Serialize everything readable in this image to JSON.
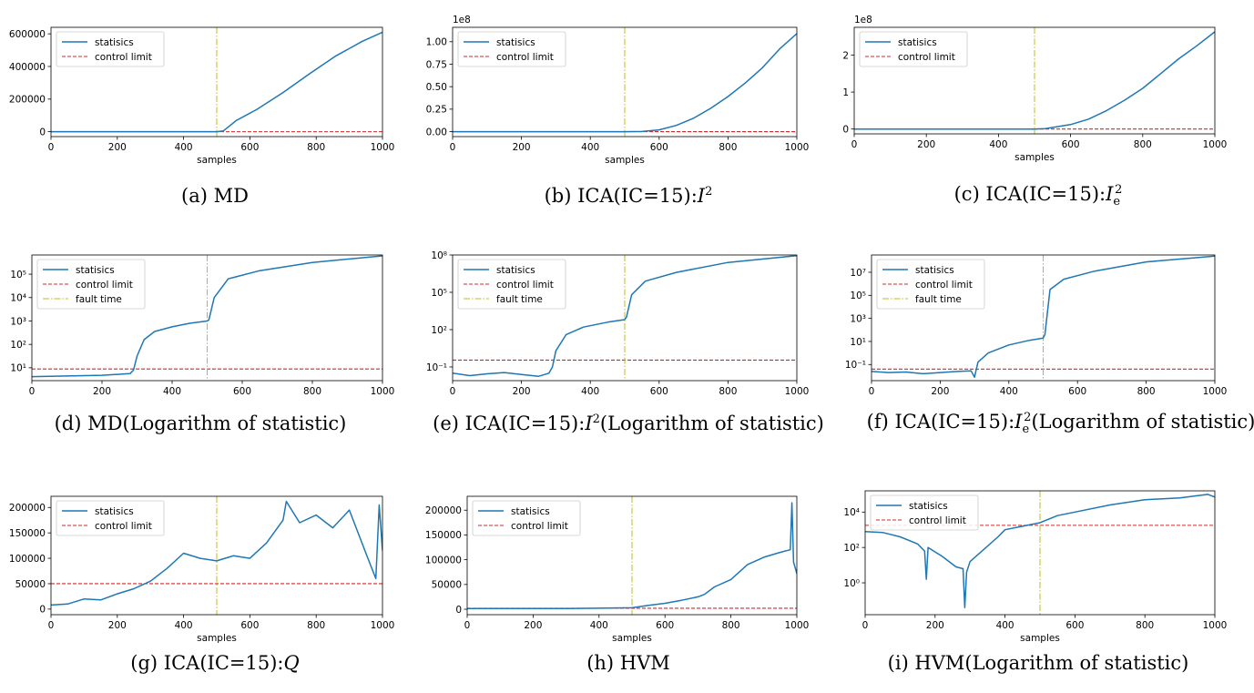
{
  "chart_data": [
    {
      "id": "a",
      "type": "line",
      "yscale": "linear",
      "caption": "(a) MD",
      "xlabel": "samples",
      "ylabel": "",
      "offset_text": "",
      "xlim": [
        0,
        1000
      ],
      "ylim": [
        -30000,
        640000
      ],
      "xticks": [
        0,
        200,
        400,
        600,
        800,
        1000
      ],
      "yticks": [
        0,
        200000,
        400000,
        600000
      ],
      "ytick_labels": [
        "0",
        "200000",
        "400000",
        "600000"
      ],
      "legend": [
        "statisics",
        "control limit"
      ],
      "control_limit": 0,
      "fault_time": 500,
      "series": [
        {
          "name": "statisics",
          "x": [
            0,
            100,
            200,
            300,
            400,
            500,
            520,
            560,
            620,
            700,
            780,
            860,
            940,
            1000
          ],
          "y": [
            200,
            200,
            200,
            200,
            200,
            200,
            5000,
            70000,
            135000,
            240000,
            355000,
            465000,
            555000,
            610000
          ]
        }
      ]
    },
    {
      "id": "b",
      "type": "line",
      "yscale": "linear",
      "caption": "(b) ICA(IC=15):I2",
      "xlabel": "samples",
      "ylabel": "",
      "offset_text": "1e8",
      "xlim": [
        0,
        1000
      ],
      "ylim": [
        -0.055,
        1.16
      ],
      "xticks": [
        0,
        200,
        400,
        600,
        800,
        1000
      ],
      "yticks": [
        0,
        0.25,
        0.5,
        0.75,
        1.0
      ],
      "ytick_labels": [
        "0.00",
        "0.25",
        "0.50",
        "0.75",
        "1.00"
      ],
      "legend": [
        "statisics",
        "control limit"
      ],
      "control_limit": 0,
      "fault_time": 500,
      "series": [
        {
          "name": "statisics",
          "x": [
            0,
            200,
            400,
            500,
            550,
            600,
            650,
            700,
            750,
            800,
            850,
            900,
            950,
            1000
          ],
          "y": [
            0,
            0,
            0,
            0,
            0.002,
            0.02,
            0.07,
            0.15,
            0.26,
            0.39,
            0.54,
            0.71,
            0.92,
            1.09
          ]
        }
      ]
    },
    {
      "id": "c",
      "type": "line",
      "yscale": "linear",
      "caption": "(c) ICA(IC=15):Ie2",
      "xlabel": "samples",
      "ylabel": "",
      "offset_text": "1e8",
      "xlim": [
        0,
        1000
      ],
      "ylim": [
        -0.13,
        2.75
      ],
      "xticks": [
        0,
        200,
        400,
        600,
        800,
        1000
      ],
      "yticks": [
        0,
        1,
        2
      ],
      "ytick_labels": [
        "0",
        "1",
        "2"
      ],
      "legend": [
        "statisics",
        "control limit"
      ],
      "control_limit": 0,
      "fault_time": 500,
      "series": [
        {
          "name": "statisics",
          "x": [
            0,
            200,
            400,
            500,
            530,
            600,
            650,
            700,
            750,
            800,
            850,
            900,
            950,
            1000
          ],
          "y": [
            0,
            0,
            0,
            0,
            0.01,
            0.12,
            0.27,
            0.5,
            0.78,
            1.1,
            1.5,
            1.9,
            2.25,
            2.63
          ]
        }
      ]
    },
    {
      "id": "d",
      "type": "line",
      "yscale": "log",
      "caption": "(d) MD(Logarithm of statistic)",
      "xlabel": "",
      "ylabel": "",
      "offset_text": "",
      "xlim": [
        0,
        1000
      ],
      "ylim": [
        0.45,
        5.82
      ],
      "xticks": [
        0,
        200,
        400,
        600,
        800,
        1000
      ],
      "yticks": [
        1,
        2,
        3,
        4,
        5
      ],
      "ytick_labels": [
        "10¹",
        "10²",
        "10³",
        "10⁴",
        "10⁵"
      ],
      "legend": [
        "statisics",
        "control limit",
        "fault time"
      ],
      "control_limit": 0.95,
      "fault_time": 500,
      "series": [
        {
          "name": "statisics",
          "x": [
            0,
            100,
            200,
            280,
            290,
            300,
            320,
            350,
            400,
            450,
            500,
            505,
            520,
            560,
            650,
            800,
            1000
          ],
          "y": [
            0.62,
            0.65,
            0.68,
            0.75,
            0.9,
            1.5,
            2.2,
            2.55,
            2.75,
            2.9,
            3.0,
            3.05,
            4.0,
            4.8,
            5.15,
            5.5,
            5.78
          ]
        }
      ]
    },
    {
      "id": "e",
      "type": "line",
      "yscale": "log",
      "caption": "(e) ICA(IC=15):I2(Logarithm of statistic)",
      "xlabel": "",
      "ylabel": "",
      "offset_text": "",
      "xlim": [
        0,
        1000
      ],
      "ylim": [
        -2.1,
        8.0
      ],
      "xticks": [
        0,
        200,
        400,
        600,
        800,
        1000
      ],
      "yticks": [
        -1,
        2,
        5,
        8
      ],
      "ytick_labels": [
        "10⁻¹",
        "10²",
        "10⁵",
        "10⁸"
      ],
      "legend": [
        "statisics",
        "control limit",
        "fault time"
      ],
      "control_limit": -0.45,
      "fault_time": 500,
      "series": [
        {
          "name": "statisics",
          "x": [
            0,
            50,
            100,
            150,
            200,
            250,
            280,
            290,
            300,
            330,
            380,
            450,
            500,
            505,
            520,
            560,
            650,
            800,
            1000
          ],
          "y": [
            -1.5,
            -1.7,
            -1.55,
            -1.45,
            -1.6,
            -1.75,
            -1.5,
            -1.0,
            0.3,
            1.6,
            2.2,
            2.6,
            2.8,
            3.0,
            4.8,
            5.9,
            6.6,
            7.4,
            7.95
          ]
        }
      ]
    },
    {
      "id": "f",
      "type": "line",
      "yscale": "log",
      "caption": "(f) ICA(IC=15):Ie2(Logarithm of statistic)",
      "xlabel": "",
      "ylabel": "",
      "offset_text": "",
      "xlim": [
        0,
        1000
      ],
      "ylim": [
        -2.4,
        8.5
      ],
      "xticks": [
        0,
        200,
        400,
        600,
        800,
        1000
      ],
      "yticks": [
        -1,
        1,
        3,
        5,
        7
      ],
      "ytick_labels": [
        "10⁻¹",
        "10¹",
        "10³",
        "10⁵",
        "10⁷"
      ],
      "legend": [
        "statisics",
        "control limit",
        "fault time"
      ],
      "control_limit": -1.4,
      "fault_time": 500,
      "series": [
        {
          "name": "statisics",
          "x": [
            0,
            50,
            100,
            150,
            200,
            250,
            290,
            300,
            310,
            340,
            400,
            460,
            500,
            505,
            520,
            560,
            650,
            800,
            1000
          ],
          "y": [
            -1.6,
            -1.7,
            -1.65,
            -1.8,
            -1.7,
            -1.6,
            -1.55,
            -2.1,
            -0.8,
            0.0,
            0.7,
            1.1,
            1.3,
            1.6,
            5.5,
            6.4,
            7.1,
            7.9,
            8.4
          ]
        }
      ]
    },
    {
      "id": "g",
      "type": "line",
      "yscale": "linear",
      "caption": "(g) ICA(IC=15):Q",
      "xlabel": "samples",
      "ylabel": "",
      "offset_text": "",
      "xlim": [
        0,
        1000
      ],
      "ylim": [
        -11000,
        222000
      ],
      "xticks": [
        0,
        200,
        400,
        600,
        800,
        1000
      ],
      "yticks": [
        0,
        50000,
        100000,
        150000,
        200000
      ],
      "ytick_labels": [
        "0",
        "50000",
        "100000",
        "150000",
        "200000"
      ],
      "legend": [
        "statisics",
        "control limit"
      ],
      "control_limit": 50000,
      "fault_time": 500,
      "series": [
        {
          "name": "statisics",
          "x": [
            0,
            50,
            100,
            150,
            200,
            250,
            300,
            350,
            400,
            450,
            500,
            550,
            600,
            650,
            700,
            710,
            750,
            800,
            850,
            900,
            950,
            980,
            990,
            1000
          ],
          "y": [
            8000,
            10000,
            20000,
            18000,
            30000,
            40000,
            55000,
            80000,
            110000,
            100000,
            95000,
            105000,
            100000,
            130000,
            175000,
            212000,
            170000,
            185000,
            160000,
            195000,
            110000,
            60000,
            205000,
            115000
          ]
        }
      ]
    },
    {
      "id": "h",
      "type": "line",
      "yscale": "linear",
      "caption": "(h) HVM",
      "xlabel": "samples",
      "ylabel": "",
      "offset_text": "",
      "xlim": [
        0,
        1000
      ],
      "ylim": [
        -11000,
        228000
      ],
      "xticks": [
        0,
        200,
        400,
        600,
        800,
        1000
      ],
      "yticks": [
        0,
        50000,
        100000,
        150000,
        200000
      ],
      "ytick_labels": [
        "0",
        "50000",
        "100000",
        "150000",
        "200000"
      ],
      "legend": [
        "statisics",
        "control limit"
      ],
      "control_limit": 2000,
      "fault_time": 500,
      "series": [
        {
          "name": "statisics",
          "x": [
            0,
            100,
            200,
            300,
            400,
            500,
            550,
            600,
            650,
            700,
            720,
            750,
            800,
            850,
            900,
            950,
            980,
            985,
            990,
            1000
          ],
          "y": [
            1500,
            1500,
            1500,
            1500,
            2000,
            3000,
            8000,
            12000,
            18000,
            25000,
            30000,
            45000,
            60000,
            90000,
            105000,
            115000,
            120000,
            215000,
            95000,
            72000
          ]
        }
      ]
    },
    {
      "id": "i",
      "type": "line",
      "yscale": "log",
      "caption": "(i) HVM(Logarithm of statistic)",
      "xlabel": "samples",
      "ylabel": "",
      "offset_text": "",
      "xlim": [
        0,
        1000
      ],
      "ylim": [
        -1.8,
        5.2
      ],
      "xticks": [
        0,
        200,
        400,
        600,
        800,
        1000
      ],
      "yticks": [
        0,
        2,
        4
      ],
      "ytick_labels": [
        "10⁰",
        "10²",
        "10⁴"
      ],
      "legend": [
        "statisics",
        "control limit"
      ],
      "control_limit": 3.25,
      "fault_time": 500,
      "series": [
        {
          "name": "statisics",
          "x": [
            0,
            50,
            100,
            150,
            170,
            175,
            180,
            220,
            260,
            280,
            285,
            290,
            300,
            340,
            380,
            400,
            450,
            500,
            550,
            600,
            700,
            800,
            900,
            980,
            1000
          ],
          "y": [
            2.9,
            2.85,
            2.6,
            2.2,
            1.8,
            0.2,
            2.0,
            1.5,
            0.9,
            0.8,
            -1.4,
            0.6,
            1.2,
            1.9,
            2.6,
            3.0,
            3.2,
            3.4,
            3.8,
            4.0,
            4.4,
            4.7,
            4.8,
            5.0,
            4.85
          ]
        }
      ]
    }
  ]
}
